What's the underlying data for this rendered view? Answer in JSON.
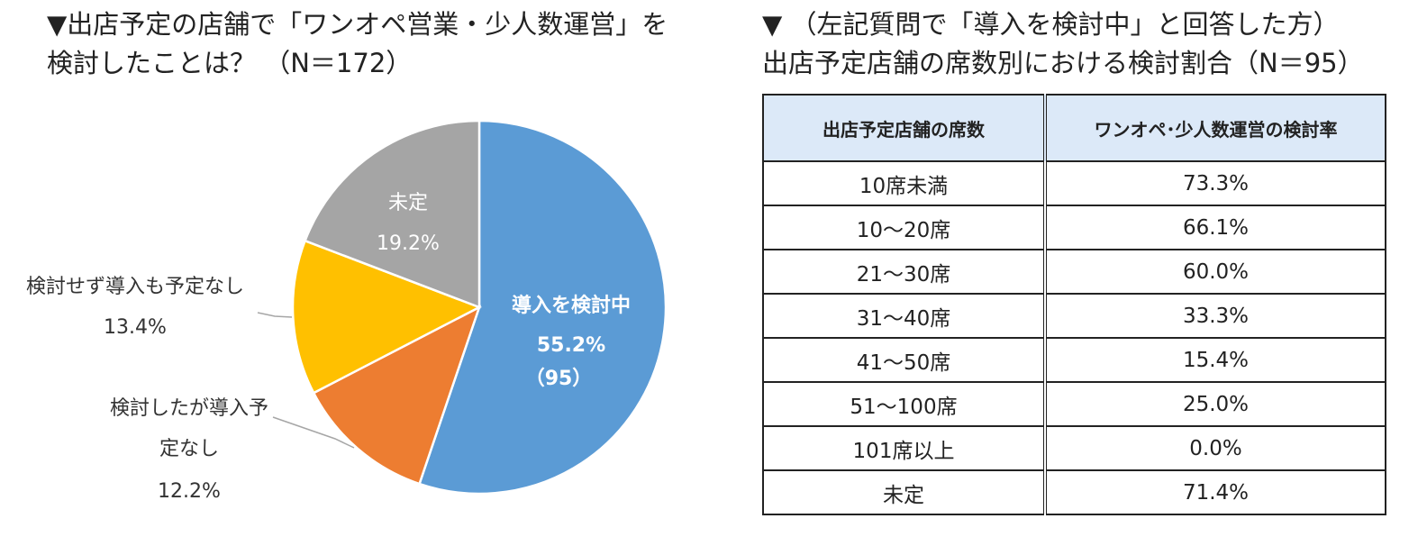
{
  "left": {
    "title_line1": "▼出店予定の店舗で「ワンオペ営業・少人数運営」を",
    "title_line2": "検討したことは？ （N＝172）"
  },
  "right": {
    "title_line1": "▼ （左記質問で「導入を検討中」と回答した方）",
    "title_line2": "出店予定店舗の席数別における検討割合（N＝95）"
  },
  "chart_data": [
    {
      "type": "pie",
      "title": "▼出店予定の店舗で「ワンオペ営業・少人数運営」を検討したことは？ （N＝172）",
      "slices": [
        {
          "label": "導入を検討中",
          "value": 55.2,
          "value_label": "55.2%",
          "count_label": "（95）",
          "color": "#5b9bd5"
        },
        {
          "label_line1": "検討したが導入予",
          "label_line2": "定なし",
          "value": 12.2,
          "value_label": "12.2%",
          "color": "#ed7d31"
        },
        {
          "label": "検討せず導入も予定なし",
          "value": 13.4,
          "value_label": "13.4%",
          "color": "#ffc000"
        },
        {
          "label": "未定",
          "value": 19.2,
          "value_label": "19.2%",
          "color": "#a5a5a5"
        }
      ],
      "start": "12 o'clock",
      "direction": "clockwise"
    },
    {
      "type": "table",
      "title": "出店予定店舗の席数別における検討割合（N＝95）",
      "columns": [
        "出店予定店舗の席数",
        "ワンオペ･少人数運営の検討率"
      ],
      "rows": [
        [
          "10席未満",
          "73.3%"
        ],
        [
          "10～20席",
          "66.1%"
        ],
        [
          "21～30席",
          "60.0%"
        ],
        [
          "31～40席",
          "33.3%"
        ],
        [
          "41～50席",
          "15.4%"
        ],
        [
          "51～100席",
          "25.0%"
        ],
        [
          "101席以上",
          "0.0%"
        ],
        [
          "未定",
          "71.4%"
        ]
      ],
      "header_color": "#dce9f8"
    }
  ]
}
